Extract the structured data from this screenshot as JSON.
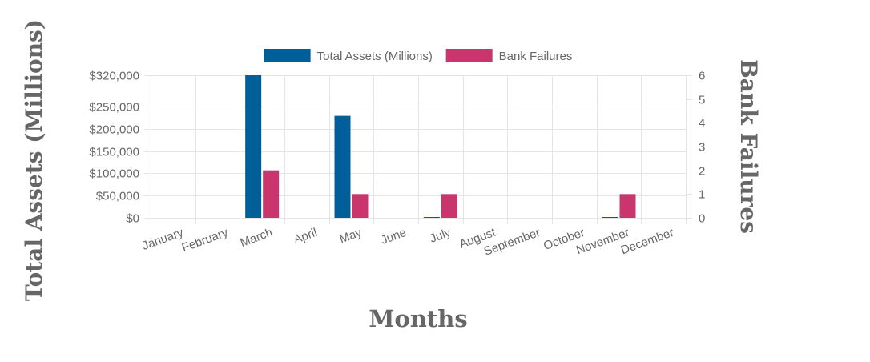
{
  "chart_data": {
    "type": "bar",
    "categories": [
      "January",
      "February",
      "March",
      "April",
      "May",
      "June",
      "July",
      "August",
      "September",
      "October",
      "November",
      "December"
    ],
    "series": [
      {
        "name": "Total Assets (Millions)",
        "axis": "left",
        "color": "#005f99",
        "values": [
          0,
          0,
          320000,
          0,
          229000,
          0,
          900,
          0,
          0,
          0,
          900,
          0
        ]
      },
      {
        "name": "Bank Failures",
        "axis": "right",
        "color": "#c9356c",
        "values": [
          0,
          0,
          2,
          0,
          1,
          0,
          1,
          0,
          0,
          0,
          1,
          0
        ]
      }
    ],
    "xlabel": "Months",
    "ylabel_left": "Total Assets (Millions)",
    "ylabel_right": "Bank Failures",
    "ylim_left": [
      0,
      320000
    ],
    "ylim_right": [
      0,
      6
    ],
    "yticks_left": [
      "$0",
      "$50,000",
      "$100,000",
      "$150,000",
      "$200,000",
      "$250,000",
      "$320,000"
    ],
    "yticks_right": [
      "0",
      "1",
      "2",
      "3",
      "4",
      "5",
      "6"
    ],
    "legend_position": "top-center",
    "grid": true
  }
}
